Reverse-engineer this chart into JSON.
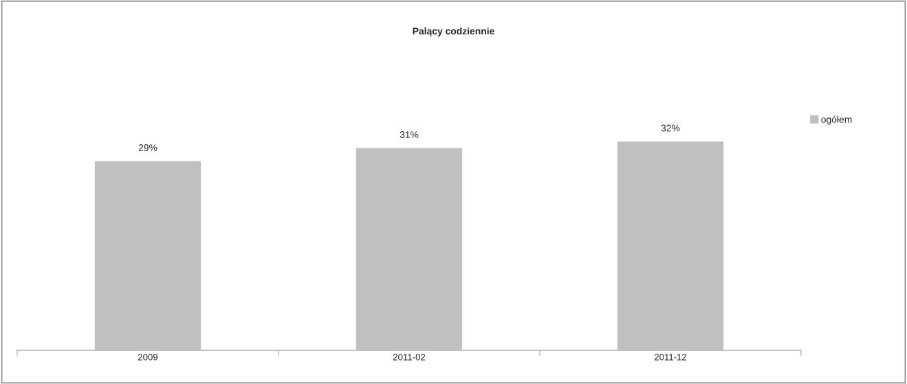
{
  "chart_data": {
    "type": "bar",
    "title": "Palący codziennie",
    "categories": [
      "2009",
      "2011-02",
      "2011-12"
    ],
    "series": [
      {
        "name": "ogółem",
        "color": "#c0c0c0",
        "values": [
          29,
          31,
          32
        ],
        "value_labels": [
          "29%",
          "31%",
          "32%"
        ]
      }
    ],
    "tick_labels": "x",
    "grid": false,
    "legend": "right"
  }
}
